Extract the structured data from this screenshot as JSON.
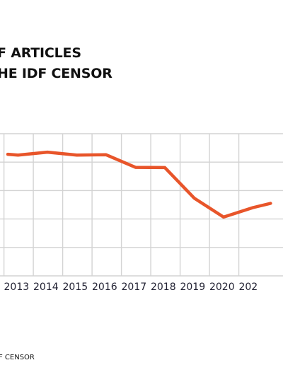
{
  "title_lines": [
    "F ARTICLES",
    "HE IDF CENSOR"
  ],
  "source_text": "F CENSOR",
  "colors": {
    "line": "#e8552a",
    "grid": "#d3d3d3",
    "text": "#111111"
  },
  "chart_data": {
    "type": "line",
    "x": [
      2012.65,
      2013,
      2014,
      2015,
      2016,
      2017,
      2018,
      2019,
      2020,
      2021,
      2021.6
    ],
    "y": [
      0.565,
      0.55,
      0.61,
      0.55,
      0.555,
      0.29,
      0.285,
      -0.36,
      -0.76,
      -0.56,
      -0.47
    ],
    "x_tick_labels": [
      "2013",
      "2014",
      "2015",
      "2016",
      "2017",
      "2018",
      "2019",
      "2020",
      "202"
    ],
    "xlim": [
      2012.65,
      2021.35
    ],
    "ylim": [
      -2,
      1
    ],
    "grid": true,
    "title": "",
    "xlabel": "",
    "ylabel": ""
  }
}
